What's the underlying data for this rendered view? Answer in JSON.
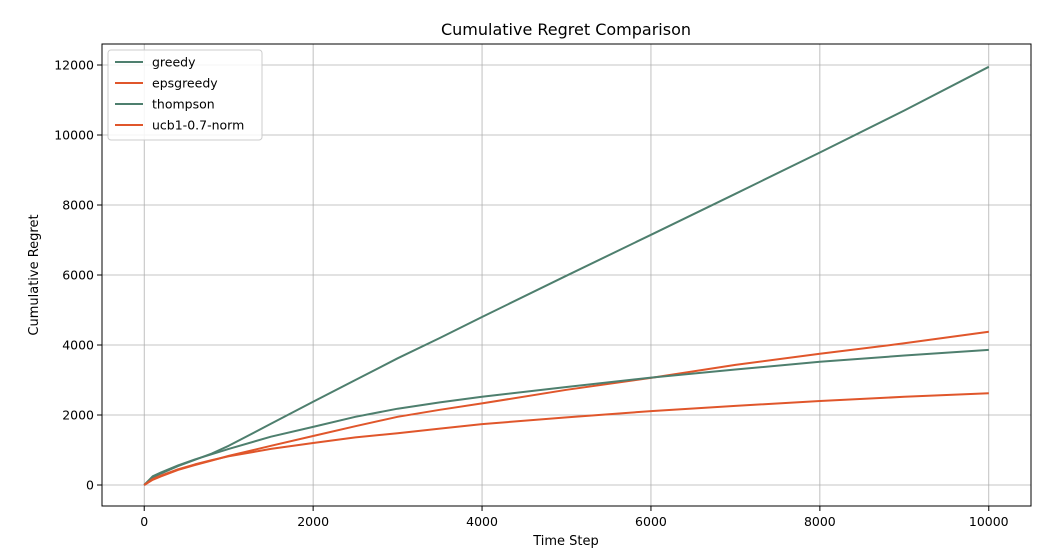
{
  "chart_data": {
    "type": "line",
    "title": "Cumulative Regret Comparison",
    "xlabel": "Time Step",
    "ylabel": "Cumulative Regret",
    "xlim": [
      -500,
      10500
    ],
    "ylim": [
      -600,
      12600
    ],
    "xticks": [
      0,
      2000,
      4000,
      6000,
      8000,
      10000
    ],
    "yticks": [
      0,
      2000,
      4000,
      6000,
      8000,
      10000,
      12000
    ],
    "grid": true,
    "legend_position": "top-left",
    "series": [
      {
        "name": "greedy",
        "color": "#4e7f6e",
        "x": [
          0,
          100,
          200,
          400,
          600,
          800,
          1000,
          1500,
          2000,
          2500,
          3000,
          3500,
          4000,
          5000,
          6000,
          7000,
          8000,
          9000,
          10000
        ],
        "y": [
          0,
          220,
          330,
          540,
          720,
          900,
          1120,
          1750,
          2380,
          3000,
          3620,
          4200,
          4800,
          5980,
          7150,
          8320,
          9500,
          10700,
          11950
        ]
      },
      {
        "name": "epsgreedy",
        "color": "#e0562b",
        "x": [
          0,
          100,
          200,
          400,
          600,
          800,
          1000,
          1500,
          2000,
          2500,
          3000,
          3500,
          4000,
          5000,
          6000,
          7000,
          8000,
          9000,
          10000
        ],
        "y": [
          0,
          150,
          250,
          430,
          570,
          700,
          830,
          1120,
          1400,
          1680,
          1950,
          2150,
          2330,
          2720,
          3060,
          3430,
          3750,
          4050,
          4380
        ]
      },
      {
        "name": "thompson",
        "color": "#4e7f6e",
        "x": [
          0,
          100,
          200,
          400,
          600,
          800,
          1000,
          1500,
          2000,
          2500,
          3000,
          3500,
          4000,
          5000,
          6000,
          7000,
          8000,
          9000,
          10000
        ],
        "y": [
          0,
          250,
          360,
          560,
          730,
          880,
          1030,
          1380,
          1660,
          1950,
          2180,
          2360,
          2520,
          2800,
          3070,
          3300,
          3520,
          3700,
          3860
        ]
      },
      {
        "name": "ucb1-0.7-norm",
        "color": "#e0562b",
        "x": [
          0,
          100,
          200,
          400,
          600,
          800,
          1000,
          1500,
          2000,
          2500,
          3000,
          3500,
          4000,
          5000,
          6000,
          7000,
          8000,
          9000,
          10000
        ],
        "y": [
          0,
          170,
          270,
          450,
          590,
          710,
          820,
          1030,
          1200,
          1360,
          1480,
          1610,
          1740,
          1930,
          2110,
          2260,
          2400,
          2520,
          2620
        ]
      }
    ]
  }
}
